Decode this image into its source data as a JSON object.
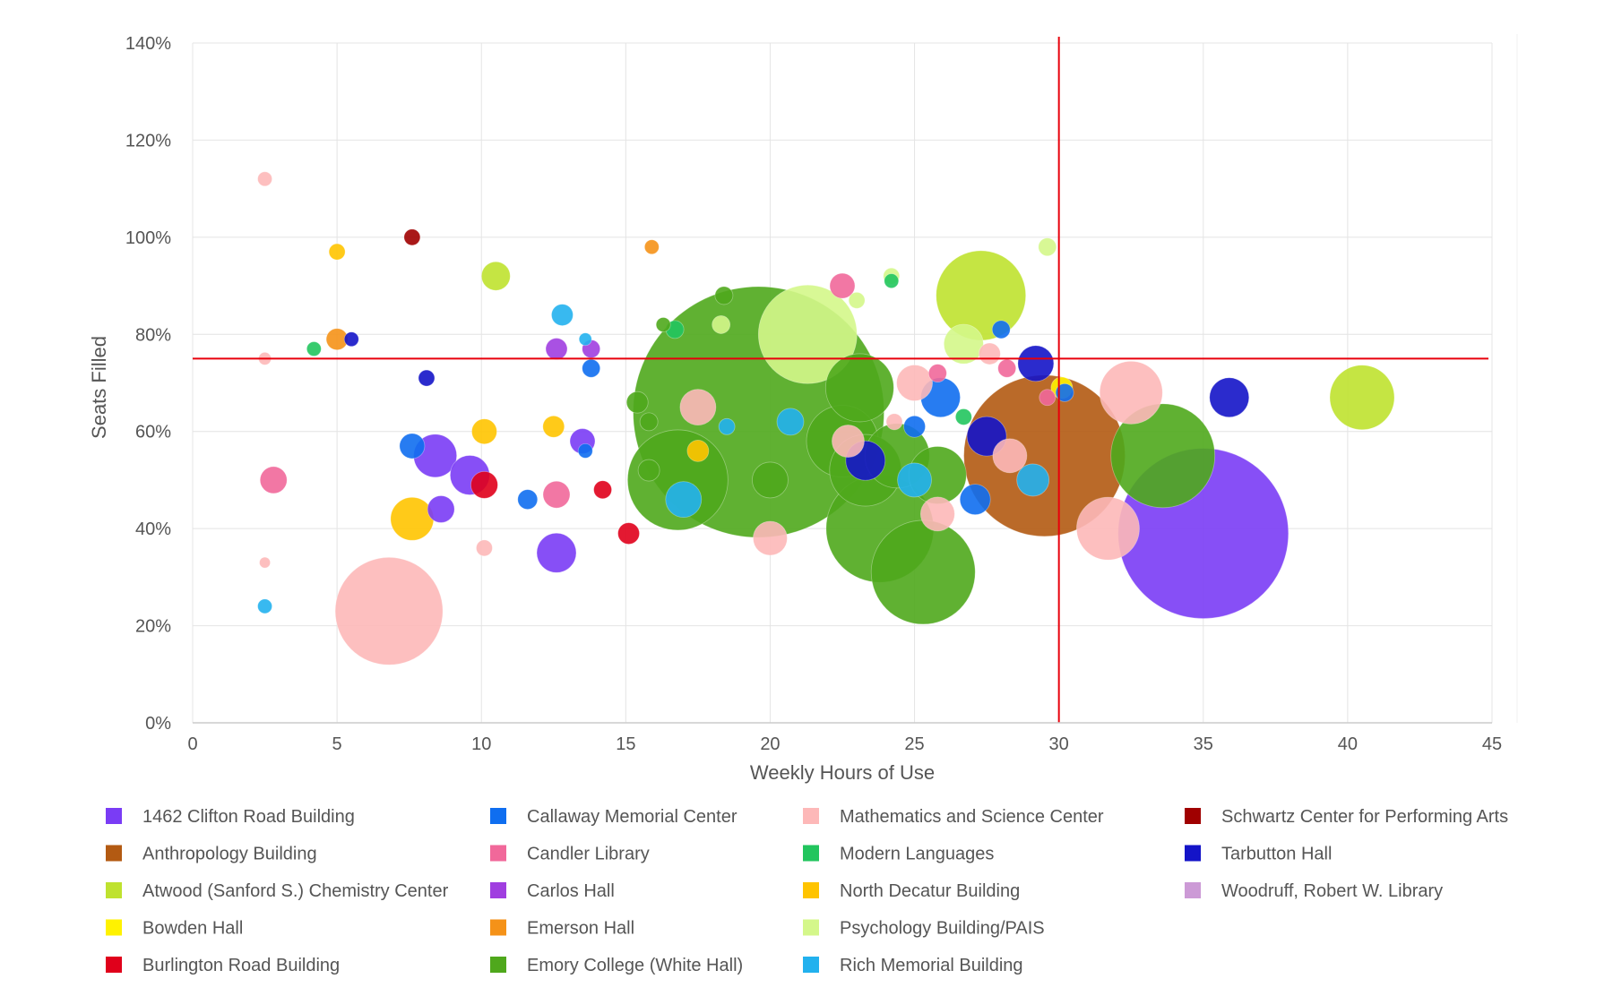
{
  "chart_data": {
    "type": "scatter",
    "subtype": "bubble",
    "xlabel": "Weekly Hours of Use",
    "ylabel": "Seats Filled",
    "xlim": [
      0,
      45
    ],
    "ylim": [
      0,
      140
    ],
    "x_ticks": [
      "0",
      "5",
      "10",
      "15",
      "20",
      "25",
      "30",
      "35",
      "40",
      "45"
    ],
    "y_ticks": [
      "0%",
      "20%",
      "40%",
      "60%",
      "80%",
      "100%",
      "120%",
      "140%"
    ],
    "grid": true,
    "legend_position": "bottom",
    "reference_lines": {
      "x": 30,
      "y": 75,
      "color": "#e8000b"
    },
    "series": [
      {
        "name": "1462 Clifton Road Building",
        "color": "#7a3cf5",
        "points": [
          {
            "x": 8.4,
            "y": 55,
            "size": 24
          },
          {
            "x": 9.6,
            "y": 51,
            "size": 22
          },
          {
            "x": 8.6,
            "y": 44,
            "size": 15
          },
          {
            "x": 12.6,
            "y": 35,
            "size": 22
          },
          {
            "x": 13.5,
            "y": 58,
            "size": 14
          },
          {
            "x": 35,
            "y": 39,
            "size": 95
          }
        ]
      },
      {
        "name": "Anthropology Building",
        "color": "#b35a12",
        "points": [
          {
            "x": 29.5,
            "y": 55,
            "size": 90
          }
        ]
      },
      {
        "name": "Atwood (Sanford S.) Chemistry Center",
        "color": "#bfe22f",
        "points": [
          {
            "x": 10.5,
            "y": 92,
            "size": 16
          },
          {
            "x": 27.3,
            "y": 88,
            "size": 50
          },
          {
            "x": 40.5,
            "y": 67,
            "size": 36
          }
        ]
      },
      {
        "name": "Bowden Hall",
        "color": "#fff200",
        "points": [
          {
            "x": 30.1,
            "y": 69,
            "size": 12
          }
        ]
      },
      {
        "name": "Burlington Road Building",
        "color": "#e0001b",
        "points": [
          {
            "x": 10.1,
            "y": 49,
            "size": 15
          },
          {
            "x": 14.2,
            "y": 48,
            "size": 10
          },
          {
            "x": 15.1,
            "y": 39,
            "size": 12
          }
        ]
      },
      {
        "name": "Callaway Memorial Center",
        "color": "#0f6ef0",
        "points": [
          {
            "x": 7.6,
            "y": 57,
            "size": 14
          },
          {
            "x": 11.6,
            "y": 46,
            "size": 11
          },
          {
            "x": 13.6,
            "y": 56,
            "size": 8
          },
          {
            "x": 13.8,
            "y": 73,
            "size": 10
          },
          {
            "x": 25,
            "y": 61,
            "size": 12
          },
          {
            "x": 25.9,
            "y": 67,
            "size": 22
          },
          {
            "x": 27.1,
            "y": 46,
            "size": 17
          },
          {
            "x": 28,
            "y": 81,
            "size": 10
          },
          {
            "x": 30.2,
            "y": 68,
            "size": 10
          }
        ]
      },
      {
        "name": "Candler Library",
        "color": "#f1689a",
        "points": [
          {
            "x": 2.8,
            "y": 50,
            "size": 15
          },
          {
            "x": 12.6,
            "y": 47,
            "size": 15
          },
          {
            "x": 22.5,
            "y": 90,
            "size": 14
          },
          {
            "x": 25.8,
            "y": 72,
            "size": 10
          },
          {
            "x": 28.2,
            "y": 73,
            "size": 10
          },
          {
            "x": 29.6,
            "y": 67,
            "size": 9
          }
        ]
      },
      {
        "name": "Carlos Hall",
        "color": "#a03ee0",
        "points": [
          {
            "x": 12.6,
            "y": 77,
            "size": 12
          },
          {
            "x": 13.8,
            "y": 77,
            "size": 10
          }
        ]
      },
      {
        "name": "Emerson Hall",
        "color": "#f59218",
        "points": [
          {
            "x": 5,
            "y": 79,
            "size": 12
          },
          {
            "x": 15.9,
            "y": 98,
            "size": 8
          }
        ]
      },
      {
        "name": "Emory College (White Hall)",
        "color": "#4fa81c",
        "points": [
          {
            "x": 19.6,
            "y": 64,
            "size": 140
          },
          {
            "x": 16.8,
            "y": 50,
            "size": 56
          },
          {
            "x": 23.8,
            "y": 40,
            "size": 60
          },
          {
            "x": 25.3,
            "y": 31,
            "size": 58
          },
          {
            "x": 33.6,
            "y": 55,
            "size": 58
          },
          {
            "x": 22.5,
            "y": 58,
            "size": 40
          },
          {
            "x": 23.3,
            "y": 52,
            "size": 40
          },
          {
            "x": 25.8,
            "y": 51,
            "size": 32
          },
          {
            "x": 24.4,
            "y": 55,
            "size": 36
          },
          {
            "x": 23.1,
            "y": 69,
            "size": 38
          },
          {
            "x": 20,
            "y": 50,
            "size": 20
          },
          {
            "x": 15.4,
            "y": 66,
            "size": 12
          },
          {
            "x": 15.8,
            "y": 62,
            "size": 10
          },
          {
            "x": 18.4,
            "y": 88,
            "size": 10
          },
          {
            "x": 16.3,
            "y": 82,
            "size": 8
          },
          {
            "x": 15.8,
            "y": 52,
            "size": 12
          }
        ]
      },
      {
        "name": "Mathematics and Science Center",
        "color": "#fdb8b8",
        "points": [
          {
            "x": 6.8,
            "y": 23,
            "size": 60
          },
          {
            "x": 2.5,
            "y": 112,
            "size": 8
          },
          {
            "x": 2.5,
            "y": 75,
            "size": 7
          },
          {
            "x": 2.5,
            "y": 33,
            "size": 6
          },
          {
            "x": 10.1,
            "y": 36,
            "size": 9
          },
          {
            "x": 17.5,
            "y": 65,
            "size": 20
          },
          {
            "x": 20,
            "y": 38,
            "size": 19
          },
          {
            "x": 22.7,
            "y": 58,
            "size": 18
          },
          {
            "x": 25,
            "y": 70,
            "size": 20
          },
          {
            "x": 24.3,
            "y": 62,
            "size": 9
          },
          {
            "x": 25.8,
            "y": 43,
            "size": 19
          },
          {
            "x": 28.3,
            "y": 55,
            "size": 19
          },
          {
            "x": 31.7,
            "y": 40,
            "size": 35
          },
          {
            "x": 32.5,
            "y": 68,
            "size": 35
          },
          {
            "x": 27.6,
            "y": 76,
            "size": 12
          }
        ]
      },
      {
        "name": "Modern Languages",
        "color": "#22c55e",
        "points": [
          {
            "x": 4.2,
            "y": 77,
            "size": 8
          },
          {
            "x": 16.7,
            "y": 81,
            "size": 10
          },
          {
            "x": 24.2,
            "y": 91,
            "size": 8
          },
          {
            "x": 26.7,
            "y": 63,
            "size": 9
          }
        ]
      },
      {
        "name": "North Decatur Building",
        "color": "#ffc400",
        "points": [
          {
            "x": 5,
            "y": 97,
            "size": 9
          },
          {
            "x": 7.6,
            "y": 42,
            "size": 24
          },
          {
            "x": 10.1,
            "y": 60,
            "size": 14
          },
          {
            "x": 12.5,
            "y": 61,
            "size": 12
          },
          {
            "x": 17.5,
            "y": 56,
            "size": 12
          }
        ]
      },
      {
        "name": "Psychology Building/PAIS",
        "color": "#d4f78a",
        "points": [
          {
            "x": 21.3,
            "y": 80,
            "size": 55
          },
          {
            "x": 26.7,
            "y": 78,
            "size": 22
          },
          {
            "x": 29.6,
            "y": 98,
            "size": 10
          },
          {
            "x": 24.2,
            "y": 92,
            "size": 9
          },
          {
            "x": 18.3,
            "y": 82,
            "size": 10
          },
          {
            "x": 23,
            "y": 87,
            "size": 9
          }
        ]
      },
      {
        "name": "Rich Memorial Building",
        "color": "#22b1ee",
        "points": [
          {
            "x": 2.5,
            "y": 24,
            "size": 8
          },
          {
            "x": 12.8,
            "y": 84,
            "size": 12
          },
          {
            "x": 13.6,
            "y": 79,
            "size": 7
          },
          {
            "x": 17,
            "y": 46,
            "size": 20
          },
          {
            "x": 18.5,
            "y": 61,
            "size": 9
          },
          {
            "x": 20.7,
            "y": 62,
            "size": 15
          },
          {
            "x": 25,
            "y": 50,
            "size": 19
          },
          {
            "x": 29.1,
            "y": 50,
            "size": 18
          }
        ]
      },
      {
        "name": "Schwartz Center for Performing Arts",
        "color": "#a00000",
        "points": [
          {
            "x": 7.6,
            "y": 100,
            "size": 9
          }
        ]
      },
      {
        "name": "Tarbutton Hall",
        "color": "#1414c8",
        "points": [
          {
            "x": 5.5,
            "y": 79,
            "size": 8
          },
          {
            "x": 8.1,
            "y": 71,
            "size": 9
          },
          {
            "x": 23.3,
            "y": 54,
            "size": 22
          },
          {
            "x": 27.5,
            "y": 59,
            "size": 22
          },
          {
            "x": 29.2,
            "y": 74,
            "size": 20
          },
          {
            "x": 35.9,
            "y": 67,
            "size": 22
          }
        ]
      },
      {
        "name": "Woodruff, Robert W. Library",
        "color": "#cc9ad6",
        "points": []
      }
    ]
  }
}
